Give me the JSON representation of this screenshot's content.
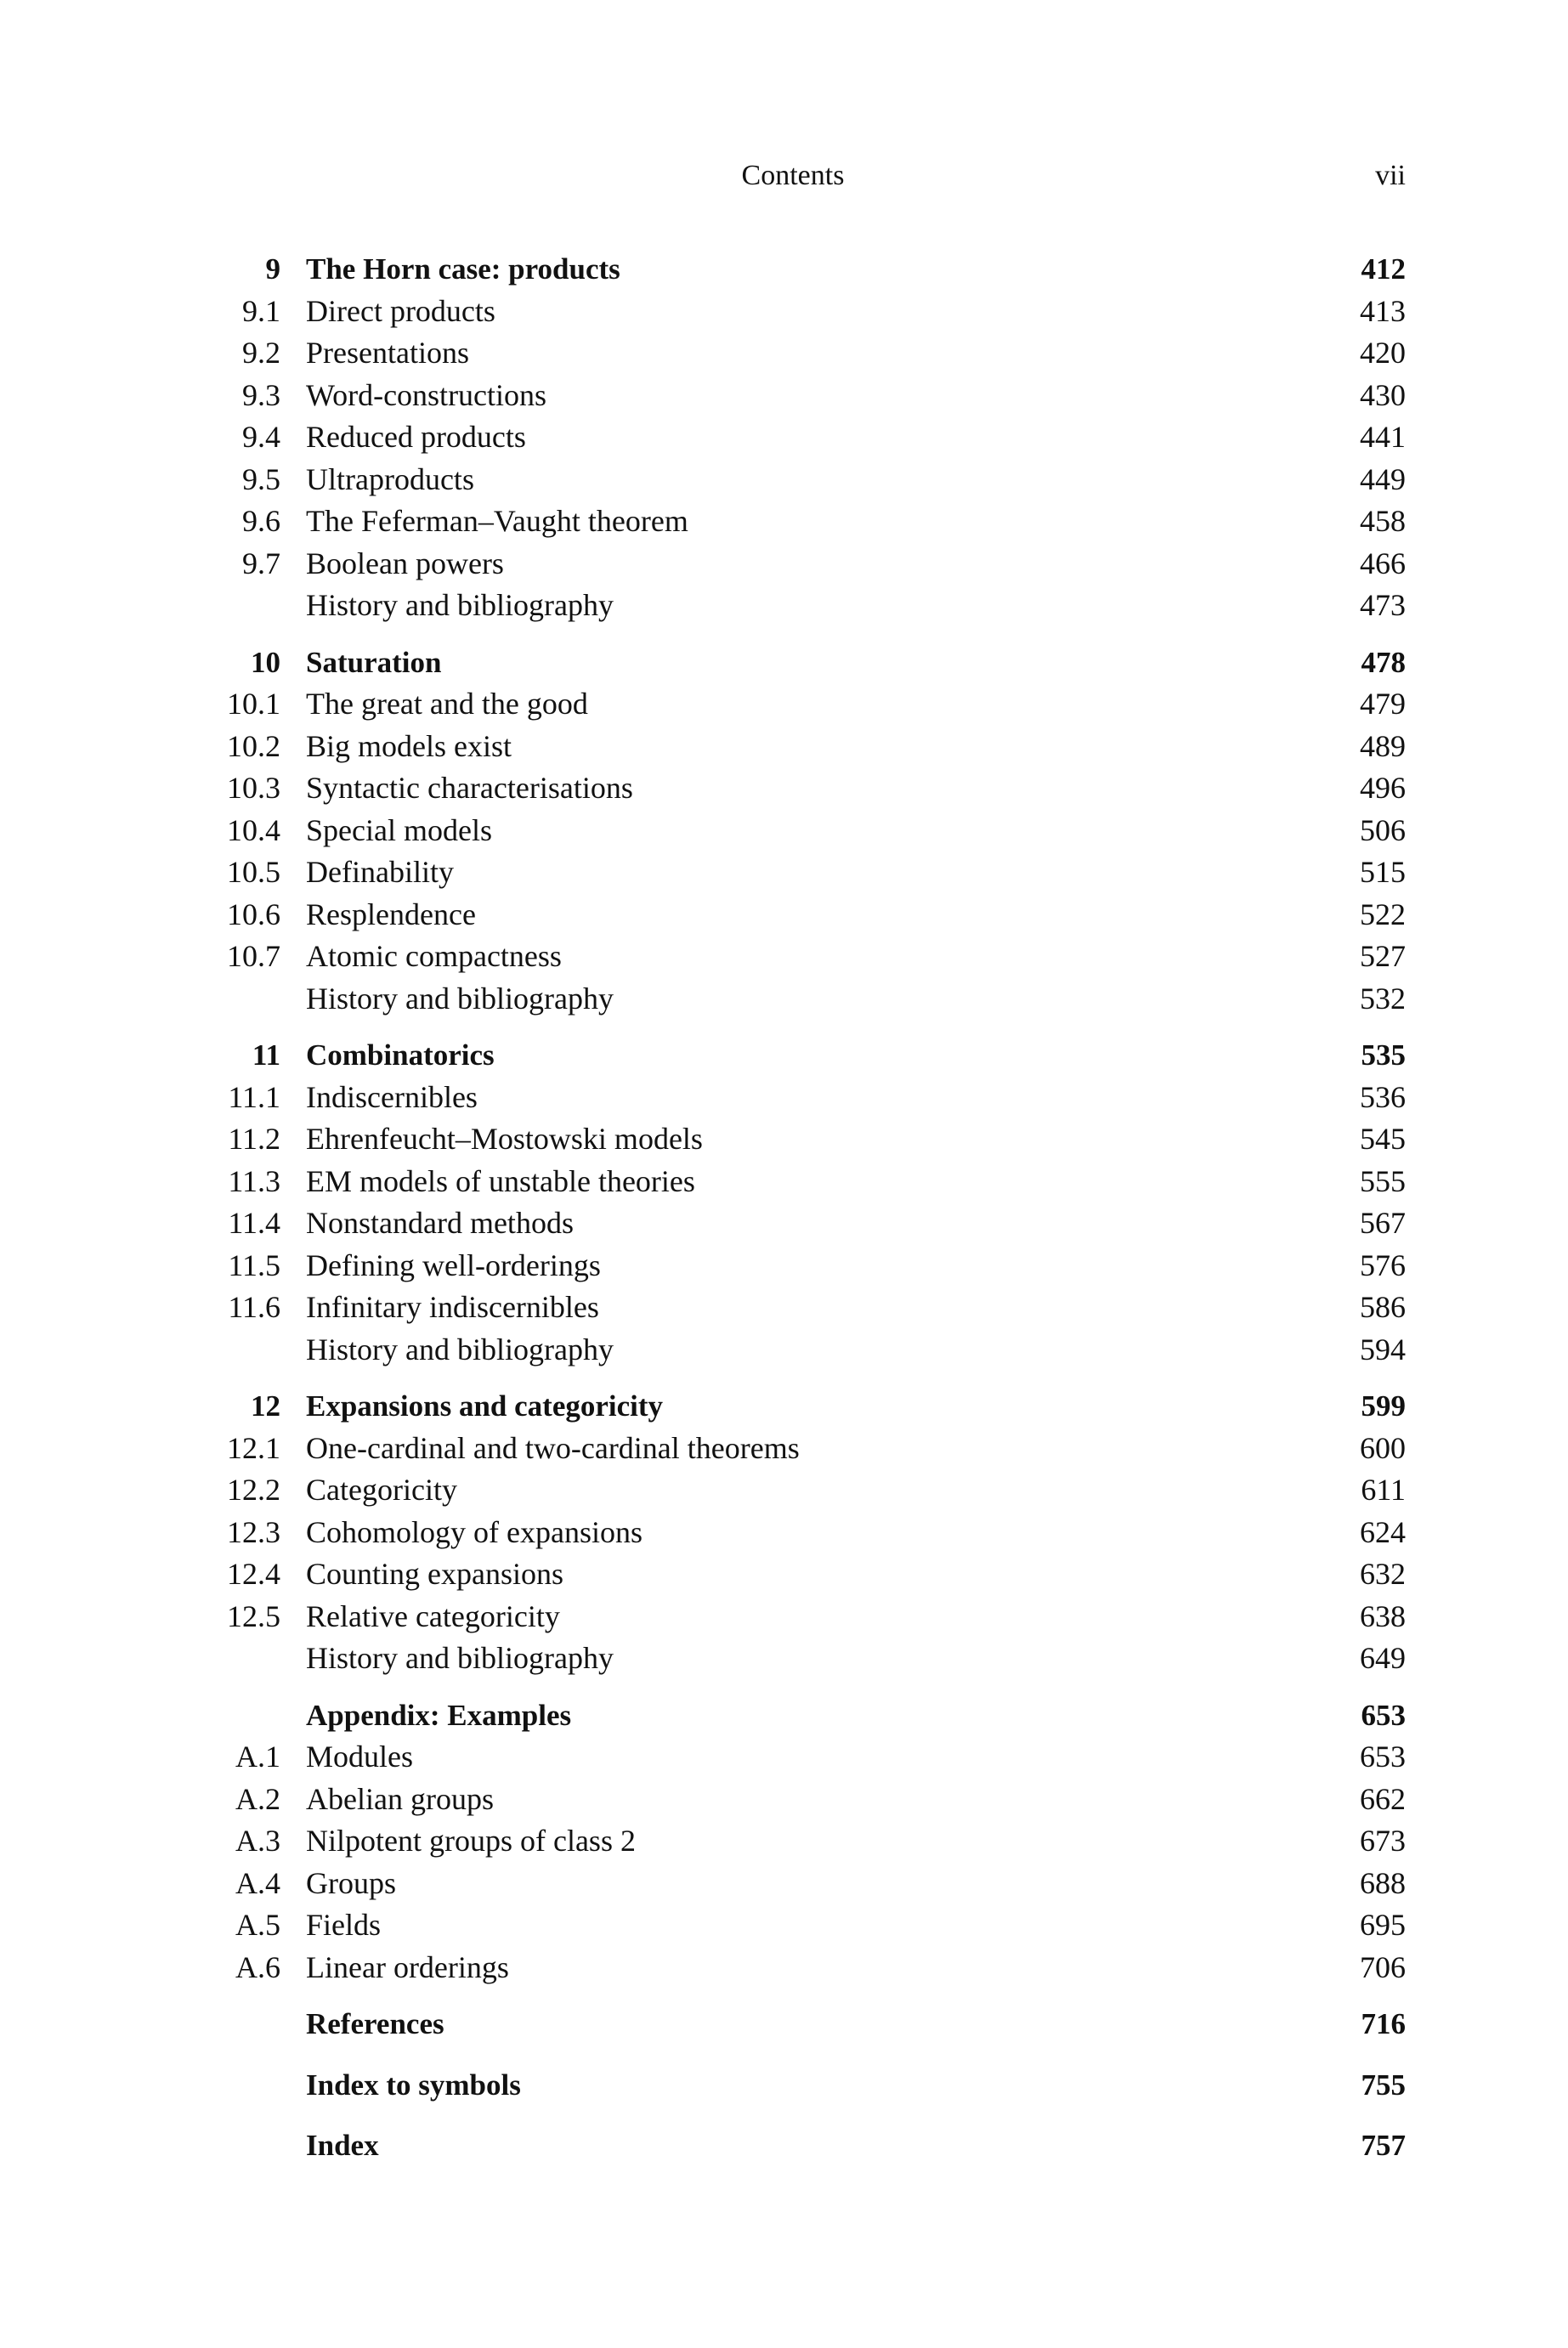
{
  "header": {
    "title": "Contents",
    "page": "vii"
  },
  "groups": [
    {
      "entries": [
        {
          "num": "9",
          "title": "The Horn case: products",
          "page": "412",
          "bold": true
        },
        {
          "num": "9.1",
          "title": "Direct products",
          "page": "413"
        },
        {
          "num": "9.2",
          "title": "Presentations",
          "page": "420"
        },
        {
          "num": "9.3",
          "title": "Word-constructions",
          "page": "430"
        },
        {
          "num": "9.4",
          "title": "Reduced products",
          "page": "441"
        },
        {
          "num": "9.5",
          "title": "Ultraproducts",
          "page": "449"
        },
        {
          "num": "9.6",
          "title": "The Feferman–Vaught theorem",
          "page": "458"
        },
        {
          "num": "9.7",
          "title": "Boolean powers",
          "page": "466"
        },
        {
          "num": "",
          "title": "History and bibliography",
          "page": "473"
        }
      ]
    },
    {
      "entries": [
        {
          "num": "10",
          "title": "Saturation",
          "page": "478",
          "bold": true
        },
        {
          "num": "10.1",
          "title": "The great and the good",
          "page": "479"
        },
        {
          "num": "10.2",
          "title": "Big models exist",
          "page": "489"
        },
        {
          "num": "10.3",
          "title": "Syntactic characterisations",
          "page": "496"
        },
        {
          "num": "10.4",
          "title": "Special models",
          "page": "506"
        },
        {
          "num": "10.5",
          "title": "Definability",
          "page": "515"
        },
        {
          "num": "10.6",
          "title": "Resplendence",
          "page": "522"
        },
        {
          "num": "10.7",
          "title": "Atomic compactness",
          "page": "527"
        },
        {
          "num": "",
          "title": "History and bibliography",
          "page": "532"
        }
      ]
    },
    {
      "entries": [
        {
          "num": "11",
          "title": "Combinatorics",
          "page": "535",
          "bold": true
        },
        {
          "num": "11.1",
          "title": "Indiscernibles",
          "page": "536"
        },
        {
          "num": "11.2",
          "title": "Ehrenfeucht–Mostowski models",
          "page": "545"
        },
        {
          "num": "11.3",
          "title": "EM models of unstable theories",
          "page": "555"
        },
        {
          "num": "11.4",
          "title": "Nonstandard methods",
          "page": "567"
        },
        {
          "num": "11.5",
          "title": "Defining well-orderings",
          "page": "576"
        },
        {
          "num": "11.6",
          "title": "Infinitary indiscernibles",
          "page": "586"
        },
        {
          "num": "",
          "title": "History and bibliography",
          "page": "594"
        }
      ]
    },
    {
      "entries": [
        {
          "num": "12",
          "title": "Expansions and categoricity",
          "page": "599",
          "bold": true
        },
        {
          "num": "12.1",
          "title": "One-cardinal and two-cardinal theorems",
          "page": "600"
        },
        {
          "num": "12.2",
          "title": "Categoricity",
          "page": "611"
        },
        {
          "num": "12.3",
          "title": "Cohomology of expansions",
          "page": "624"
        },
        {
          "num": "12.4",
          "title": "Counting expansions",
          "page": "632"
        },
        {
          "num": "12.5",
          "title": "Relative categoricity",
          "page": "638"
        },
        {
          "num": "",
          "title": "History and bibliography",
          "page": "649"
        }
      ]
    },
    {
      "entries": [
        {
          "num": "",
          "title": "Appendix: Examples",
          "page": "653",
          "bold": true
        },
        {
          "num": "A.1",
          "title": "Modules",
          "page": "653"
        },
        {
          "num": "A.2",
          "title": "Abelian groups",
          "page": "662"
        },
        {
          "num": "A.3",
          "title": "Nilpotent groups of class 2",
          "page": "673"
        },
        {
          "num": "A.4",
          "title": "Groups",
          "page": "688"
        },
        {
          "num": "A.5",
          "title": "Fields",
          "page": "695"
        },
        {
          "num": "A.6",
          "title": "Linear orderings",
          "page": "706"
        }
      ]
    },
    {
      "solo": true,
      "entries": [
        {
          "num": "",
          "title": "References",
          "page": "716",
          "bold": true
        }
      ]
    },
    {
      "solo": true,
      "entries": [
        {
          "num": "",
          "title": "Index to symbols",
          "page": "755",
          "bold": true
        }
      ]
    },
    {
      "solo": true,
      "entries": [
        {
          "num": "",
          "title": "Index",
          "page": "757",
          "bold": true
        }
      ]
    }
  ]
}
